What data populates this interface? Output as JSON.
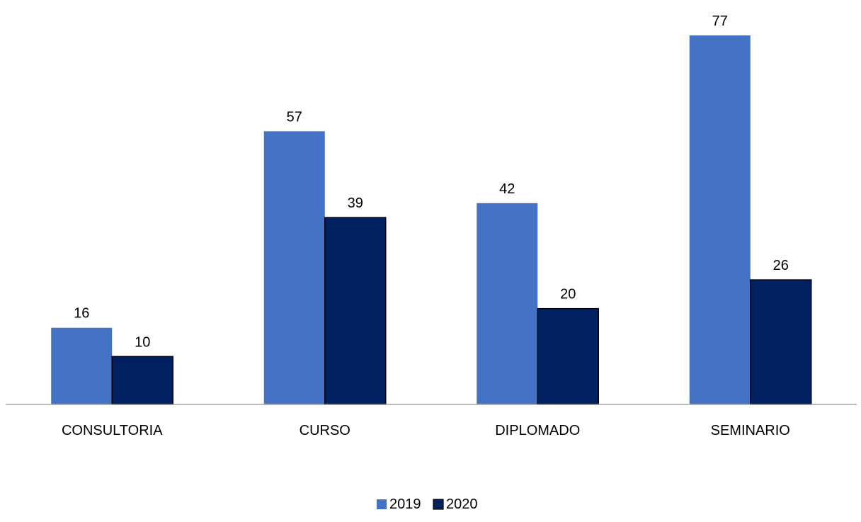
{
  "chart_data": {
    "type": "bar",
    "categories": [
      "CONSULTORIA",
      "CURSO",
      "DIPLOMADO",
      "SEMINARIO"
    ],
    "series": [
      {
        "name": "2019",
        "values": [
          16,
          57,
          42,
          77
        ],
        "color": "#4472C4"
      },
      {
        "name": "2020",
        "values": [
          10,
          39,
          20,
          26
        ],
        "color": "#002060"
      }
    ],
    "ylim": [
      0,
      77
    ],
    "grid": false,
    "data_labels": true,
    "legend_position": "bottom",
    "title": "",
    "xlabel": "",
    "ylabel": ""
  }
}
